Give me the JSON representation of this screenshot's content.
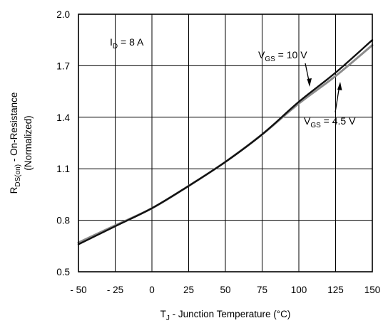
{
  "chart_data": {
    "type": "line",
    "xlabel": {
      "main": "T",
      "sub": "J",
      "rest": " - Junction Temperature (°C)"
    },
    "ylabel": {
      "line1": {
        "main": "R",
        "sub": "DS(on)",
        "rest": " - On-Resistance"
      },
      "line2": "(Normalized)"
    },
    "xlim": [
      -50,
      150
    ],
    "ylim": [
      0.5,
      2.0
    ],
    "xticks": [
      -50,
      -25,
      0,
      25,
      50,
      75,
      100,
      125,
      150
    ],
    "xtick_labels": [
      "- 50",
      "- 25",
      "0",
      "25",
      "50",
      "75",
      "100",
      "125",
      "150"
    ],
    "yticks": [
      0.5,
      0.8,
      1.1,
      1.4,
      1.7,
      2.0
    ],
    "ytick_labels": [
      "0.5",
      "0.8",
      "1.1",
      "1.4",
      "1.7",
      "2.0"
    ],
    "grid": true,
    "series": [
      {
        "name": "VGS = 4.5 V",
        "color": "#8c8c8c",
        "x": [
          -50,
          -25,
          0,
          25,
          50,
          75,
          100,
          125,
          150
        ],
        "y": [
          0.67,
          0.77,
          0.87,
          1.0,
          1.14,
          1.3,
          1.48,
          1.64,
          1.82
        ]
      },
      {
        "name": "VGS = 10 V",
        "color": "#111111",
        "x": [
          -50,
          -25,
          0,
          25,
          50,
          75,
          100,
          125,
          150
        ],
        "y": [
          0.66,
          0.765,
          0.87,
          1.0,
          1.14,
          1.3,
          1.49,
          1.66,
          1.85
        ]
      }
    ],
    "annotations": {
      "id": {
        "main": "I",
        "sub": "D",
        "rest": " = 8 A"
      },
      "vgs10": {
        "main": "V",
        "sub": "GS",
        "rest": " = 10 V"
      },
      "vgs45": {
        "main": "V",
        "sub": "GS",
        "rest": " = 4.5 V"
      }
    }
  }
}
